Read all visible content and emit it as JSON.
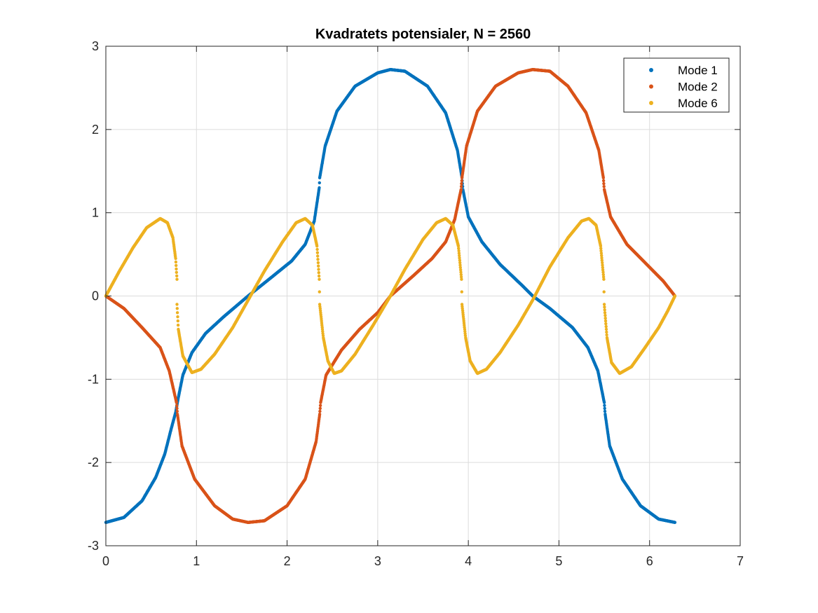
{
  "chart_data": {
    "type": "scatter",
    "title": "Kvadratets potensialer, N = 2560",
    "xlabel": "",
    "ylabel": "",
    "xlim": [
      0,
      7
    ],
    "ylim": [
      -3,
      3
    ],
    "xticks": [
      "0",
      "1",
      "2",
      "3",
      "4",
      "5",
      "6",
      "7"
    ],
    "yticks": [
      "-3",
      "-2",
      "-1",
      "0",
      "1",
      "2",
      "3"
    ],
    "grid": true,
    "legend_position": "top-right",
    "x_domain": [
      0,
      6.2832
    ],
    "series": [
      {
        "name": "Mode 1",
        "color": "#0072BD",
        "points": [
          [
            0,
            -2.72
          ],
          [
            0.2,
            -2.66
          ],
          [
            0.4,
            -2.46
          ],
          [
            0.55,
            -2.18
          ],
          [
            0.65,
            -1.9
          ],
          [
            0.72,
            -1.6
          ],
          [
            0.77,
            -1.4
          ],
          [
            0.8,
            -1.22
          ],
          [
            0.85,
            -0.95
          ],
          [
            0.95,
            -0.68
          ],
          [
            1.1,
            -0.45
          ],
          [
            1.3,
            -0.25
          ],
          [
            1.57,
            0.0
          ],
          [
            1.8,
            0.2
          ],
          [
            2.05,
            0.42
          ],
          [
            2.2,
            0.62
          ],
          [
            2.3,
            0.9
          ],
          [
            2.355,
            1.3
          ],
          [
            2.36,
            1.42
          ],
          [
            2.42,
            1.8
          ],
          [
            2.55,
            2.22
          ],
          [
            2.75,
            2.52
          ],
          [
            3.0,
            2.68
          ],
          [
            3.14,
            2.72
          ],
          [
            3.3,
            2.7
          ],
          [
            3.55,
            2.52
          ],
          [
            3.75,
            2.2
          ],
          [
            3.88,
            1.75
          ],
          [
            3.93,
            1.42
          ],
          [
            3.94,
            1.28
          ],
          [
            4.0,
            0.95
          ],
          [
            4.15,
            0.65
          ],
          [
            4.35,
            0.38
          ],
          [
            4.6,
            0.12
          ],
          [
            4.71,
            0.0
          ],
          [
            4.9,
            -0.15
          ],
          [
            5.15,
            -0.38
          ],
          [
            5.32,
            -0.62
          ],
          [
            5.43,
            -0.9
          ],
          [
            5.5,
            -1.28
          ],
          [
            5.51,
            -1.42
          ],
          [
            5.56,
            -1.8
          ],
          [
            5.7,
            -2.2
          ],
          [
            5.9,
            -2.52
          ],
          [
            6.1,
            -2.68
          ],
          [
            6.28,
            -2.72
          ]
        ]
      },
      {
        "name": "Mode 2",
        "color": "#D95319",
        "points": [
          [
            0,
            0.0
          ],
          [
            0.2,
            -0.15
          ],
          [
            0.4,
            -0.38
          ],
          [
            0.6,
            -0.62
          ],
          [
            0.7,
            -0.9
          ],
          [
            0.78,
            -1.28
          ],
          [
            0.79,
            -1.42
          ],
          [
            0.84,
            -1.8
          ],
          [
            0.98,
            -2.2
          ],
          [
            1.2,
            -2.52
          ],
          [
            1.4,
            -2.68
          ],
          [
            1.57,
            -2.72
          ],
          [
            1.75,
            -2.7
          ],
          [
            2.0,
            -2.52
          ],
          [
            2.2,
            -2.2
          ],
          [
            2.32,
            -1.75
          ],
          [
            2.36,
            -1.42
          ],
          [
            2.37,
            -1.28
          ],
          [
            2.43,
            -0.95
          ],
          [
            2.6,
            -0.65
          ],
          [
            2.8,
            -0.4
          ],
          [
            3.0,
            -0.2
          ],
          [
            3.14,
            0.0
          ],
          [
            3.4,
            0.25
          ],
          [
            3.6,
            0.45
          ],
          [
            3.75,
            0.65
          ],
          [
            3.85,
            0.92
          ],
          [
            3.92,
            1.28
          ],
          [
            3.93,
            1.42
          ],
          [
            3.98,
            1.8
          ],
          [
            4.1,
            2.22
          ],
          [
            4.3,
            2.52
          ],
          [
            4.55,
            2.68
          ],
          [
            4.71,
            2.72
          ],
          [
            4.9,
            2.7
          ],
          [
            5.1,
            2.52
          ],
          [
            5.3,
            2.2
          ],
          [
            5.44,
            1.75
          ],
          [
            5.49,
            1.42
          ],
          [
            5.5,
            1.28
          ],
          [
            5.57,
            0.95
          ],
          [
            5.75,
            0.62
          ],
          [
            5.95,
            0.4
          ],
          [
            6.15,
            0.18
          ],
          [
            6.28,
            0.0
          ]
        ]
      },
      {
        "name": "Mode 6",
        "color": "#EDB120",
        "points": [
          [
            0,
            0.0
          ],
          [
            0.15,
            0.3
          ],
          [
            0.3,
            0.58
          ],
          [
            0.45,
            0.82
          ],
          [
            0.6,
            0.93
          ],
          [
            0.68,
            0.88
          ],
          [
            0.74,
            0.7
          ],
          [
            0.77,
            0.45
          ],
          [
            0.785,
            0.2
          ],
          [
            0.785,
            -0.1
          ],
          [
            0.8,
            -0.4
          ],
          [
            0.85,
            -0.72
          ],
          [
            0.95,
            -0.92
          ],
          [
            1.05,
            -0.88
          ],
          [
            1.2,
            -0.7
          ],
          [
            1.4,
            -0.38
          ],
          [
            1.57,
            -0.05
          ],
          [
            1.75,
            0.3
          ],
          [
            1.95,
            0.65
          ],
          [
            2.1,
            0.88
          ],
          [
            2.2,
            0.93
          ],
          [
            2.28,
            0.85
          ],
          [
            2.33,
            0.6
          ],
          [
            2.355,
            0.2
          ],
          [
            2.36,
            -0.1
          ],
          [
            2.4,
            -0.5
          ],
          [
            2.45,
            -0.78
          ],
          [
            2.52,
            -0.93
          ],
          [
            2.6,
            -0.9
          ],
          [
            2.75,
            -0.7
          ],
          [
            2.95,
            -0.35
          ],
          [
            3.14,
            0.0
          ],
          [
            3.3,
            0.32
          ],
          [
            3.5,
            0.68
          ],
          [
            3.65,
            0.88
          ],
          [
            3.75,
            0.93
          ],
          [
            3.83,
            0.85
          ],
          [
            3.89,
            0.6
          ],
          [
            3.925,
            0.2
          ],
          [
            3.93,
            -0.1
          ],
          [
            3.97,
            -0.5
          ],
          [
            4.02,
            -0.78
          ],
          [
            4.1,
            -0.93
          ],
          [
            4.2,
            -0.88
          ],
          [
            4.35,
            -0.68
          ],
          [
            4.55,
            -0.35
          ],
          [
            4.71,
            -0.05
          ],
          [
            4.9,
            0.35
          ],
          [
            5.1,
            0.7
          ],
          [
            5.25,
            0.9
          ],
          [
            5.33,
            0.93
          ],
          [
            5.41,
            0.85
          ],
          [
            5.46,
            0.6
          ],
          [
            5.495,
            0.2
          ],
          [
            5.5,
            -0.1
          ],
          [
            5.53,
            -0.5
          ],
          [
            5.58,
            -0.8
          ],
          [
            5.67,
            -0.93
          ],
          [
            5.8,
            -0.85
          ],
          [
            5.95,
            -0.62
          ],
          [
            6.1,
            -0.38
          ],
          [
            6.2,
            -0.18
          ],
          [
            6.28,
            0.0
          ]
        ]
      }
    ]
  }
}
